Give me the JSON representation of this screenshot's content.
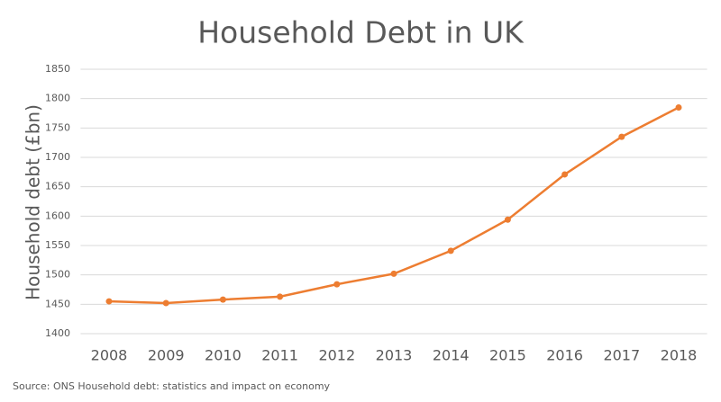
{
  "chart_data": {
    "type": "line",
    "title": "Household Debt in UK",
    "y_label": "Household debt (£bn)",
    "source": "Source: ONS Household debt: statistics and impact on economy",
    "categories": [
      "2008",
      "2009",
      "2010",
      "2011",
      "2012",
      "2013",
      "2014",
      "2015",
      "2016",
      "2017",
      "2018"
    ],
    "series": [
      {
        "color": "#ed7d31",
        "values": [
          1455,
          1452,
          1458,
          1463,
          1484,
          1502,
          1541,
          1594,
          1671,
          1735,
          1785
        ]
      }
    ],
    "ylim": [
      1400,
      1850
    ],
    "yticks": [
      1400,
      1450,
      1500,
      1550,
      1600,
      1650,
      1700,
      1750,
      1800,
      1850
    ],
    "grid": true
  }
}
